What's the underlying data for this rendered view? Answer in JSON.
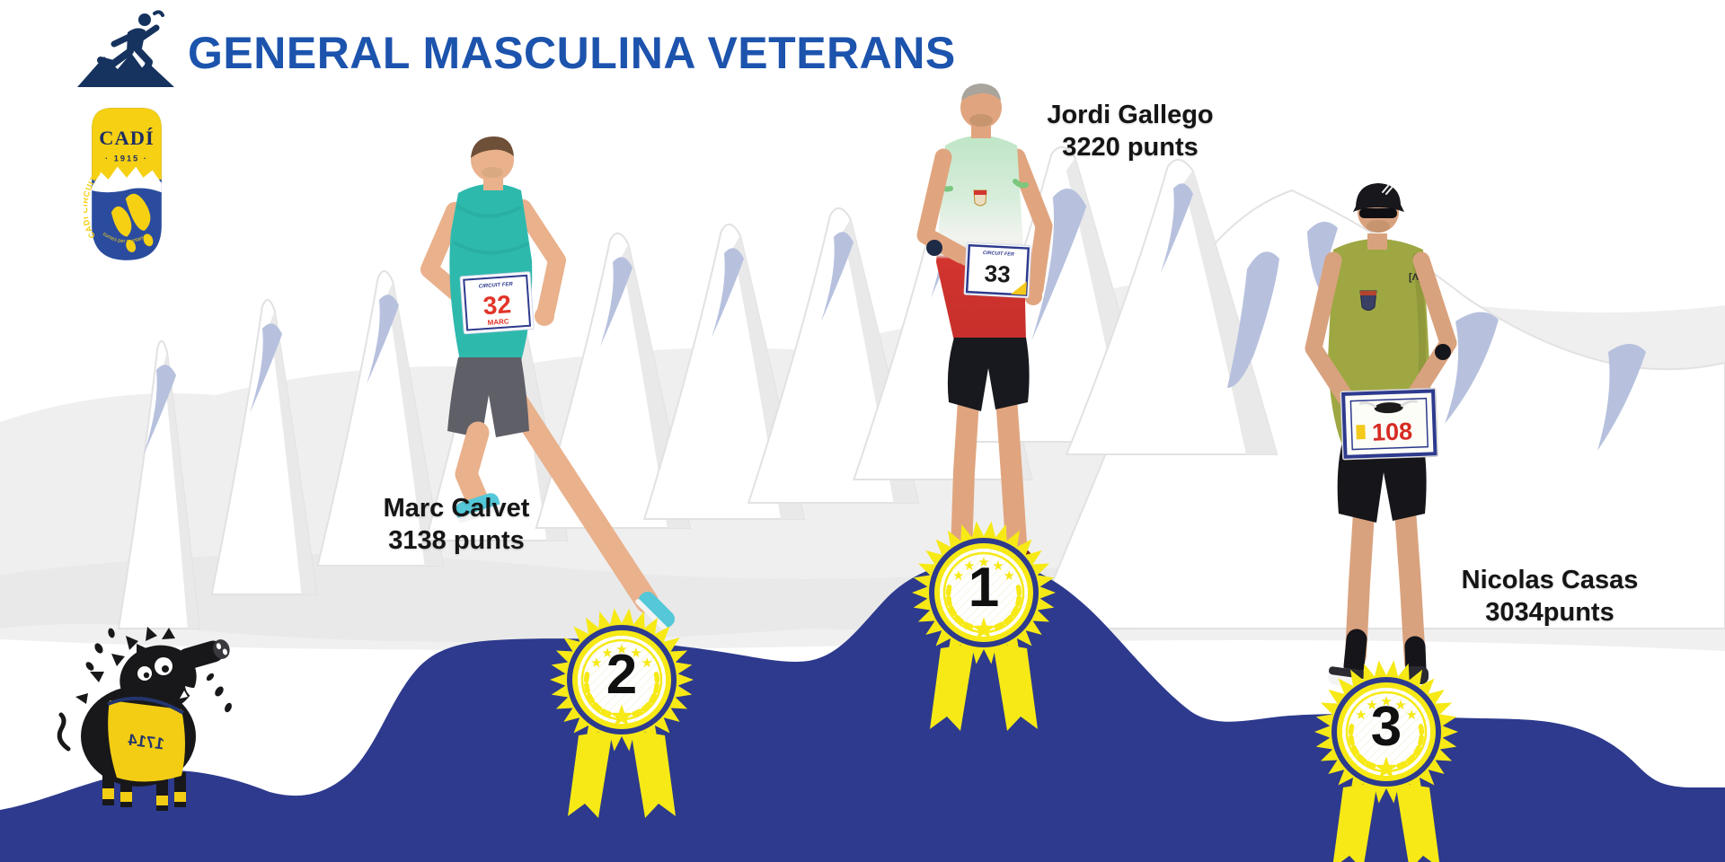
{
  "header": {
    "title": "GENERAL MASCULINA VETERANS"
  },
  "logo": {
    "name": "CADÍ",
    "year": "· 1915 ·",
    "arc": "CADÍ CIRCUIT FER",
    "tagline": "curses per muntanya"
  },
  "podium": {
    "bib_header": "CIRCUIT FER",
    "positions": [
      {
        "rank": "1",
        "name": "Jordi Gallego",
        "points": "3220 punts",
        "bib": "33"
      },
      {
        "rank": "2",
        "name": "Marc Calvet",
        "points": "3138 punts",
        "bib": "32",
        "bib_name": "MARC"
      },
      {
        "rank": "3",
        "name": "Nicolas Casas",
        "points": "3034punts",
        "bib": "108"
      }
    ]
  },
  "mascot": {
    "bib": "1714"
  },
  "colors": {
    "hill_blue": "#2d3a8d",
    "medal_yellow": "#f6e916",
    "title_blue": "#1c53ad",
    "mountain_accent": "#b7c1de",
    "badge_yellow": "#f6d013",
    "badge_blue": "#2b4c9e"
  }
}
